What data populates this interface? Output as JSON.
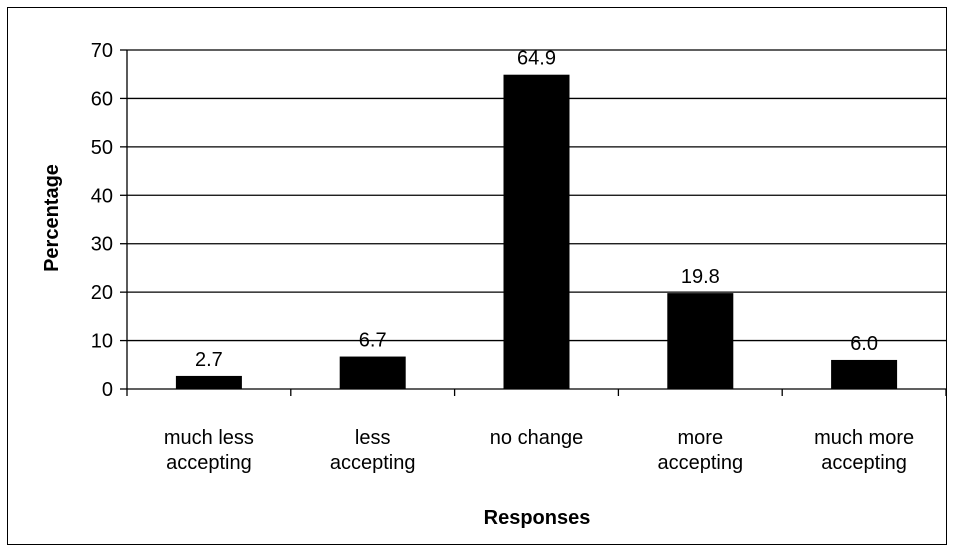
{
  "chart_data": {
    "type": "bar",
    "categories": [
      [
        "much less",
        "accepting"
      ],
      [
        "less",
        "accepting"
      ],
      [
        "no change"
      ],
      [
        "more",
        "accepting"
      ],
      [
        "much more",
        "accepting"
      ]
    ],
    "values": [
      2.7,
      6.7,
      64.9,
      19.8,
      6.0
    ],
    "data_labels": [
      "2.7",
      "6.7",
      "64.9",
      "19.8",
      "6.0"
    ],
    "xlabel": "Responses",
    "ylabel": "Percentage",
    "ylim": [
      0,
      70
    ],
    "yticks": [
      0,
      10,
      20,
      30,
      40,
      50,
      60,
      70
    ],
    "grid": "horizontal",
    "legend": "none",
    "bar_color": "#000000"
  }
}
